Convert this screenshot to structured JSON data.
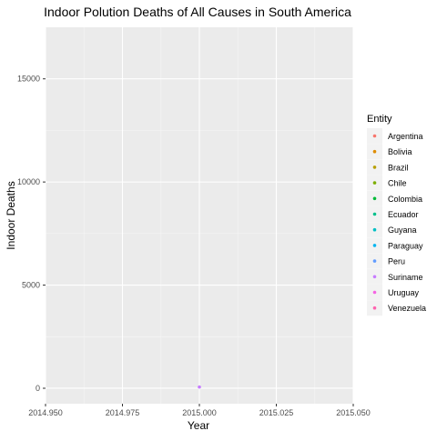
{
  "chart_data": {
    "type": "scatter",
    "title": "Indoor Polution Deaths of All Causes in South America",
    "xlabel": "Year",
    "ylabel": "Indoor Deaths",
    "xlim": [
      2014.95,
      2015.05
    ],
    "ylim": [
      -750,
      17500
    ],
    "x_ticks": [
      2014.95,
      2014.975,
      2015.0,
      2015.025,
      2015.05
    ],
    "x_tick_labels": [
      "2014.950",
      "2014.975",
      "2015.000",
      "2015.025",
      "2015.050"
    ],
    "y_ticks": [
      0,
      5000,
      10000,
      15000
    ],
    "y_tick_labels": [
      "0",
      "5000",
      "10000",
      "15000"
    ],
    "grid": true,
    "legend": {
      "title": "Entity",
      "position": "right"
    },
    "series": [
      {
        "name": "Argentina",
        "color": "#F8766D",
        "points": []
      },
      {
        "name": "Bolivia",
        "color": "#DE8C00",
        "points": []
      },
      {
        "name": "Brazil",
        "color": "#B79F00",
        "points": []
      },
      {
        "name": "Chile",
        "color": "#7CAE00",
        "points": []
      },
      {
        "name": "Colombia",
        "color": "#00BA38",
        "points": []
      },
      {
        "name": "Ecuador",
        "color": "#00C08B",
        "points": []
      },
      {
        "name": "Guyana",
        "color": "#00BFC4",
        "points": []
      },
      {
        "name": "Paraguay",
        "color": "#00B4F0",
        "points": []
      },
      {
        "name": "Peru",
        "color": "#619CFF",
        "points": []
      },
      {
        "name": "Suriname",
        "color": "#C77CFF",
        "points": [
          [
            2015.0,
            60
          ]
        ]
      },
      {
        "name": "Uruguay",
        "color": "#F564E3",
        "points": []
      },
      {
        "name": "Venezuela",
        "color": "#FF64B0",
        "points": []
      }
    ]
  }
}
